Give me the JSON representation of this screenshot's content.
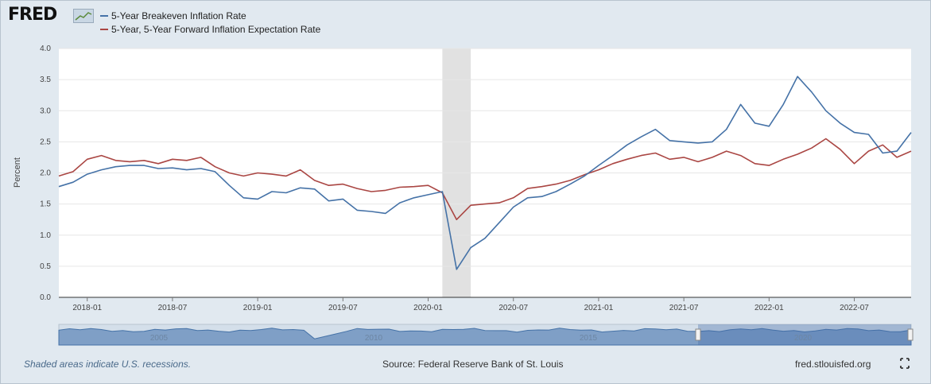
{
  "brand": {
    "logo_text": "FRED"
  },
  "colors": {
    "series1": "#4572a7",
    "series2": "#aa4643",
    "recession": "#e1e1e1",
    "navigator_fill": "#7f9fc6",
    "navigator_line": "#4572a7"
  },
  "footer": {
    "note": "Shaded areas indicate U.S. recessions.",
    "source": "Source: Federal Reserve Bank of St. Louis",
    "site": "fred.stlouisfed.org"
  },
  "navigator": {
    "year_labels": [
      "2005",
      "2010",
      "2015",
      "2020"
    ]
  },
  "chart_data": {
    "type": "line",
    "ylabel": "Percent",
    "ylim": [
      0,
      4
    ],
    "y_ticks": [
      "0.0",
      "0.5",
      "1.0",
      "1.5",
      "2.0",
      "2.5",
      "3.0",
      "3.5",
      "4.0"
    ],
    "x_range": [
      "2017-11",
      "2022-11"
    ],
    "x_ticks": [
      "2018-01",
      "2018-07",
      "2019-01",
      "2019-07",
      "2020-01",
      "2020-07",
      "2021-01",
      "2021-07",
      "2022-01",
      "2022-07"
    ],
    "recession": {
      "start": "2020-02",
      "end": "2020-04"
    },
    "grid": true,
    "legend": "top-left",
    "x": [
      "2017-11",
      "2017-12",
      "2018-01",
      "2018-02",
      "2018-03",
      "2018-04",
      "2018-05",
      "2018-06",
      "2018-07",
      "2018-08",
      "2018-09",
      "2018-10",
      "2018-11",
      "2018-12",
      "2019-01",
      "2019-02",
      "2019-03",
      "2019-04",
      "2019-05",
      "2019-06",
      "2019-07",
      "2019-08",
      "2019-09",
      "2019-10",
      "2019-11",
      "2019-12",
      "2020-01",
      "2020-02",
      "2020-03",
      "2020-04",
      "2020-05",
      "2020-06",
      "2020-07",
      "2020-08",
      "2020-09",
      "2020-10",
      "2020-11",
      "2020-12",
      "2021-01",
      "2021-02",
      "2021-03",
      "2021-04",
      "2021-05",
      "2021-06",
      "2021-07",
      "2021-08",
      "2021-09",
      "2021-10",
      "2021-11",
      "2021-12",
      "2022-01",
      "2022-02",
      "2022-03",
      "2022-04",
      "2022-05",
      "2022-06",
      "2022-07",
      "2022-08",
      "2022-09",
      "2022-10",
      "2022-11"
    ],
    "series": [
      {
        "name": "5-Year Breakeven Inflation Rate",
        "values": [
          1.78,
          1.85,
          1.98,
          2.05,
          2.1,
          2.12,
          2.12,
          2.07,
          2.08,
          2.05,
          2.07,
          2.02,
          1.8,
          1.6,
          1.58,
          1.7,
          1.68,
          1.76,
          1.74,
          1.55,
          1.58,
          1.4,
          1.38,
          1.35,
          1.52,
          1.6,
          1.65,
          1.7,
          0.45,
          0.8,
          0.95,
          1.2,
          1.45,
          1.6,
          1.62,
          1.7,
          1.82,
          1.95,
          2.12,
          2.28,
          2.45,
          2.58,
          2.7,
          2.52,
          2.5,
          2.48,
          2.5,
          2.7,
          3.1,
          2.8,
          2.75,
          3.1,
          3.55,
          3.3,
          3.0,
          2.8,
          2.65,
          2.62,
          2.32,
          2.35,
          2.65
        ]
      },
      {
        "name": "5-Year, 5-Year Forward Inflation Expectation Rate",
        "values": [
          1.95,
          2.02,
          2.22,
          2.28,
          2.2,
          2.18,
          2.2,
          2.15,
          2.22,
          2.2,
          2.25,
          2.1,
          2.0,
          1.95,
          2.0,
          1.98,
          1.95,
          2.05,
          1.88,
          1.8,
          1.82,
          1.75,
          1.7,
          1.72,
          1.77,
          1.78,
          1.8,
          1.68,
          1.25,
          1.48,
          1.5,
          1.52,
          1.6,
          1.75,
          1.78,
          1.82,
          1.88,
          1.97,
          2.05,
          2.15,
          2.22,
          2.28,
          2.32,
          2.22,
          2.25,
          2.18,
          2.25,
          2.35,
          2.28,
          2.15,
          2.12,
          2.22,
          2.3,
          2.4,
          2.55,
          2.38,
          2.15,
          2.35,
          2.45,
          2.25,
          2.35
        ]
      }
    ]
  }
}
